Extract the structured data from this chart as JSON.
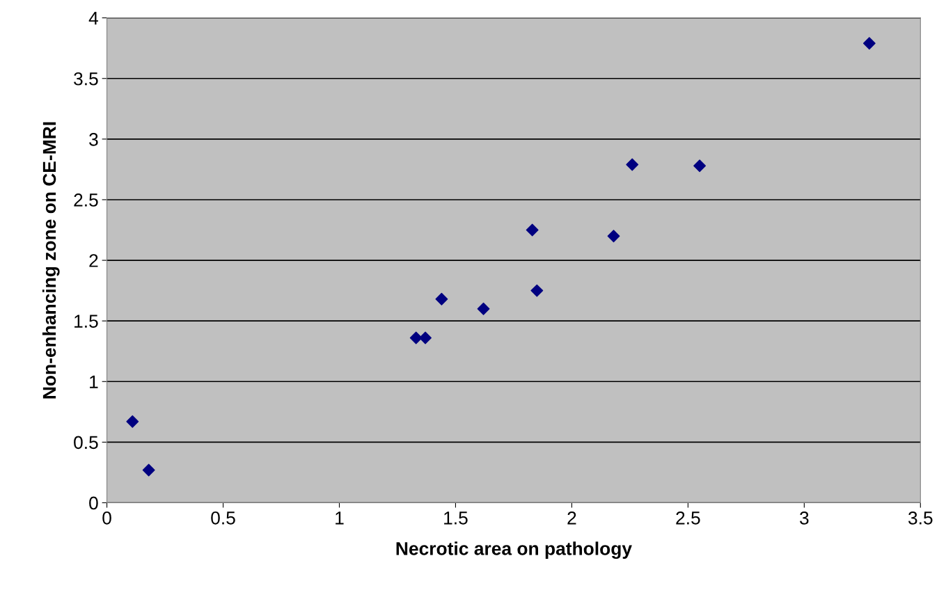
{
  "chart_data": {
    "type": "scatter",
    "xlabel": "Necrotic area on pathology",
    "ylabel": "Non-enhancing zone on CE-MRI",
    "series": [
      {
        "color": "#000080",
        "x": [
          0.11,
          0.18,
          1.33,
          1.37,
          1.44,
          1.62,
          1.83,
          1.85,
          2.18,
          2.26,
          2.55,
          3.28
        ],
        "values": [
          0.67,
          0.27,
          1.36,
          1.36,
          1.68,
          1.6,
          2.25,
          1.75,
          2.2,
          2.79,
          2.78,
          3.79
        ]
      }
    ],
    "xlim": [
      0,
      3.5
    ],
    "xticks": [
      0,
      0.5,
      1,
      1.5,
      2,
      2.5,
      3,
      3.5
    ],
    "ylim": [
      0,
      4
    ],
    "yticks": [
      0,
      0.5,
      1,
      1.5,
      2,
      2.5,
      3,
      3.5,
      4
    ],
    "grid": "y",
    "marker": "diamond",
    "legend": false
  }
}
